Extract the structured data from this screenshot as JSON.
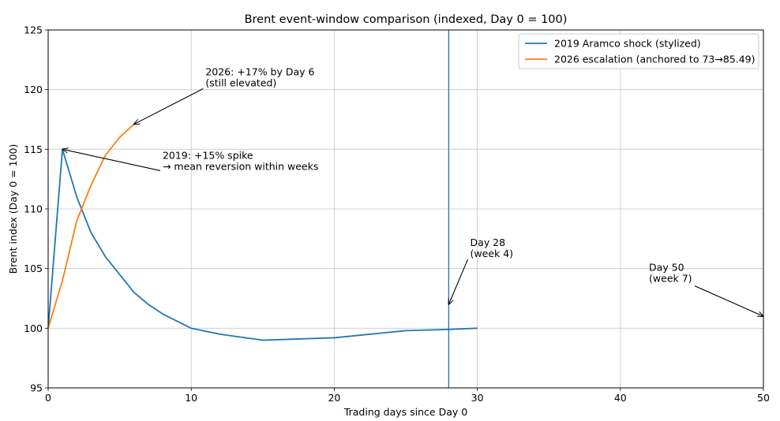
{
  "chart_data": {
    "type": "line",
    "title": "Brent event-window comparison (indexed, Day 0 = 100)",
    "xlabel": "Trading days since Day 0",
    "ylabel": "Brent index (Day 0 = 100)",
    "xlim": [
      0,
      50
    ],
    "ylim": [
      95,
      125
    ],
    "xticks": [
      0,
      10,
      20,
      30,
      40,
      50
    ],
    "yticks": [
      95,
      100,
      105,
      110,
      115,
      120,
      125
    ],
    "grid": true,
    "legend_position": "top-right",
    "series": [
      {
        "name": "2019 Aramco shock (stylized)",
        "color": "#1f77b4",
        "x": [
          0,
          1,
          2,
          3,
          4,
          5,
          6,
          7,
          8,
          10,
          12,
          15,
          20,
          25,
          28,
          30
        ],
        "y": [
          100,
          115,
          111,
          108,
          106,
          104.5,
          103,
          102,
          101.2,
          100,
          99.5,
          99,
          99.2,
          99.8,
          99.9,
          100
        ]
      },
      {
        "name": "2026 escalation (anchored to 73→85.49)",
        "color": "#ff7f0e",
        "x": [
          0,
          1,
          2,
          3,
          4,
          5,
          6
        ],
        "y": [
          100,
          104,
          109,
          112,
          114.5,
          116,
          117.1
        ]
      }
    ],
    "vlines": [
      {
        "x": 28,
        "color": "#1f77b4"
      }
    ],
    "annotations": [
      {
        "lines": [
          "2026: +17% by Day 6",
          "(still elevated)"
        ],
        "text_xy": [
          11,
          121.2
        ],
        "arrow_to": [
          6,
          117.1
        ]
      },
      {
        "lines": [
          "2019: +15% spike",
          "→ mean reversion within weeks"
        ],
        "text_xy": [
          8,
          114.2
        ],
        "arrow_to": [
          1,
          115
        ]
      },
      {
        "lines": [
          "Day 28",
          "(week 4)"
        ],
        "text_xy": [
          29.5,
          106.9
        ],
        "arrow_to": [
          28,
          102
        ]
      },
      {
        "lines": [
          "Day 50",
          "(week 7)"
        ],
        "text_xy": [
          42,
          104.8
        ],
        "arrow_to": [
          50,
          101
        ]
      }
    ]
  }
}
